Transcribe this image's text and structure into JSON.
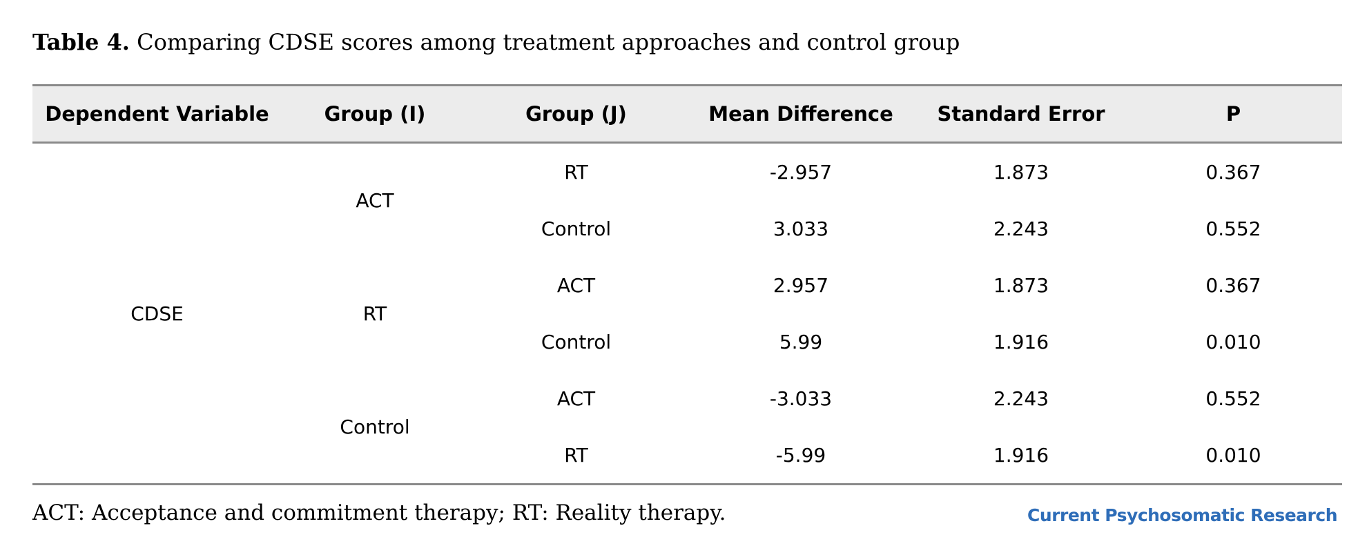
{
  "caption": {
    "label": "Table 4.",
    "text": " Comparing CDSE scores among treatment approaches and control group"
  },
  "table": {
    "headers": [
      "Dependent Variable",
      "Group (I)",
      "Group (J)",
      "Mean Difference",
      "Standard Error",
      "P"
    ],
    "dependent_variable": "CDSE",
    "groups": [
      {
        "group_i": "ACT",
        "rows": [
          {
            "group_j": "RT",
            "mean_difference": "-2.957",
            "standard_error": "1.873",
            "p": "0.367"
          },
          {
            "group_j": "Control",
            "mean_difference": "3.033",
            "standard_error": "2.243",
            "p": "0.552"
          }
        ]
      },
      {
        "group_i": "RT",
        "rows": [
          {
            "group_j": "ACT",
            "mean_difference": "2.957",
            "standard_error": "1.873",
            "p": "0.367"
          },
          {
            "group_j": "Control",
            "mean_difference": "5.99",
            "standard_error": "1.916",
            "p": "0.010"
          }
        ]
      },
      {
        "group_i": "Control",
        "rows": [
          {
            "group_j": "ACT",
            "mean_difference": "-3.033",
            "standard_error": "2.243",
            "p": "0.552"
          },
          {
            "group_j": "RT",
            "mean_difference": "-5.99",
            "standard_error": "1.916",
            "p": "0.010"
          }
        ]
      }
    ]
  },
  "footnote": "ACT: Acceptance and commitment therapy; RT: Reality therapy.",
  "journal_name": "Current Psychosomatic Research",
  "colors": {
    "header_background": "#ececec",
    "rule": "#8a8a8a",
    "journal_brand": "#2e6db8"
  }
}
